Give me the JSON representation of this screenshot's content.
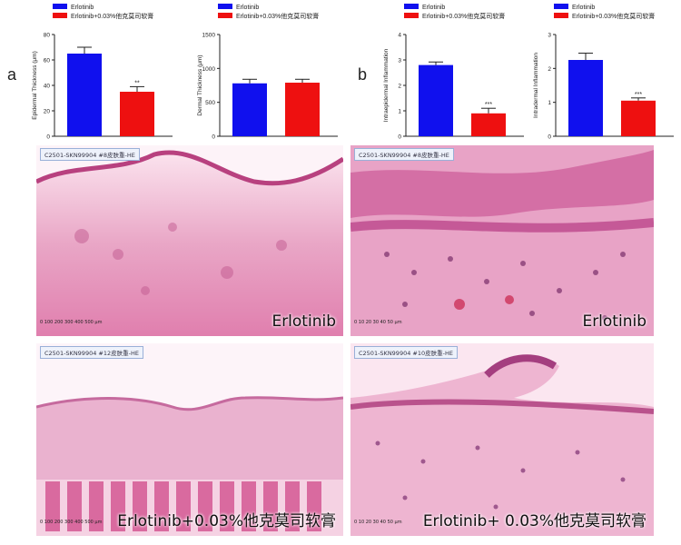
{
  "figure": {
    "label_a": "a",
    "label_b": "b"
  },
  "legend": {
    "series1": "Erlotinib",
    "series2": "Erlotinib+0.03%他克莫司软膏",
    "color1": "#1010ee",
    "color2": "#ee1010"
  },
  "chart_data": [
    {
      "type": "bar",
      "categories": [
        "Erlotinib",
        "Erlotinib+0.03%他克莫司软膏"
      ],
      "values": [
        65,
        35
      ],
      "errors": [
        5,
        4
      ],
      "ylabel": "Epidermal Thickness (μm)",
      "ylim": [
        0,
        80
      ],
      "yticks": [
        "0",
        "20",
        "40",
        "60",
        "80"
      ],
      "significance": "**"
    },
    {
      "type": "bar",
      "categories": [
        "Erlotinib",
        "Erlotinib+0.03%他克莫司软膏"
      ],
      "values": [
        780,
        790
      ],
      "errors": [
        60,
        50
      ],
      "ylabel": "Dermal Thickness (μm)",
      "ylim": [
        0,
        1500
      ],
      "yticks": [
        "0",
        "500",
        "1000",
        "1500"
      ],
      "significance": ""
    },
    {
      "type": "bar",
      "categories": [
        "Erlotinib",
        "Erlotinib+0.03%他克莫司软膏"
      ],
      "values": [
        2.8,
        0.9
      ],
      "errors": [
        0.12,
        0.2
      ],
      "ylabel": "Intraepidermal Inflammation",
      "ylim": [
        0,
        4
      ],
      "yticks": [
        "0",
        "1",
        "2",
        "3",
        "4"
      ],
      "significance": "***"
    },
    {
      "type": "bar",
      "categories": [
        "Erlotinib",
        "Erlotinib+0.03%他克莫司软膏"
      ],
      "values": [
        2.25,
        1.05
      ],
      "errors": [
        0.2,
        0.08
      ],
      "ylabel": "Intradermal Inflammation",
      "ylim": [
        0,
        3
      ],
      "yticks": [
        "0",
        "1",
        "2",
        "3"
      ],
      "significance": "***"
    }
  ],
  "photos": [
    {
      "tag": "C2501-SKN99904 #8皮肤重-HE",
      "caption": "Erlotinib",
      "scale": "0 100 200 300 400 500 μm"
    },
    {
      "tag": "C2501-SKN99904 #8皮肤重-HE",
      "caption": "Erlotinib",
      "scale": "0 10 20 30 40 50 μm"
    },
    {
      "tag": "C2501-SKN99904 #12皮肤重-HE",
      "caption": "Erlotinib+0.03%他克莫司软膏",
      "scale": "0 100 200 300 400 500 μm"
    },
    {
      "tag": "C2501-SKN99904 #10皮肤重-HE",
      "caption": "Erlotinib+ 0.03%他克莫司软膏",
      "scale": "0 10 20 30 40 50 μm"
    }
  ]
}
